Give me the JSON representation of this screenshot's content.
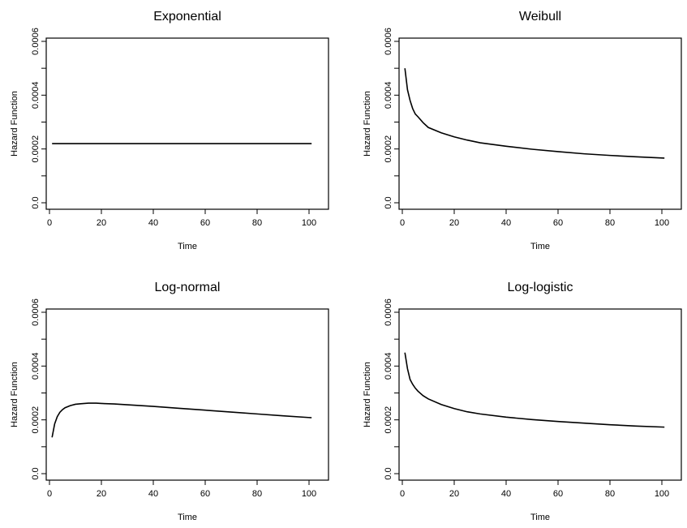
{
  "chart_data": [
    {
      "type": "line",
      "title": "Exponential",
      "xlabel": "Time",
      "ylabel": "Hazard Function",
      "xlim": [
        0,
        100
      ],
      "ylim": [
        0,
        0.0006
      ],
      "xticks": [
        "0",
        "20",
        "40",
        "60",
        "80",
        "100"
      ],
      "yticks": [
        "0.0",
        "0.0002",
        "0.0004",
        "0.0006"
      ],
      "grid": false,
      "series": [
        {
          "x": [
            1,
            10,
            20,
            30,
            40,
            50,
            60,
            70,
            80,
            90,
            101
          ],
          "y": [
            0.00022,
            0.00022,
            0.00022,
            0.00022,
            0.00022,
            0.00022,
            0.00022,
            0.00022,
            0.00022,
            0.00022,
            0.00022
          ]
        }
      ]
    },
    {
      "type": "line",
      "title": "Weibull",
      "xlabel": "Time",
      "ylabel": "Hazard Function",
      "xlim": [
        0,
        100
      ],
      "ylim": [
        0,
        0.0006
      ],
      "xticks": [
        "0",
        "20",
        "40",
        "60",
        "80",
        "100"
      ],
      "yticks": [
        "0.0",
        "0.0002",
        "0.0004",
        "0.0006"
      ],
      "grid": false,
      "series": [
        {
          "x": [
            1,
            2,
            3,
            4,
            5,
            6,
            8,
            10,
            15,
            20,
            25,
            30,
            40,
            50,
            60,
            70,
            80,
            90,
            101
          ],
          "y": [
            0.0005,
            0.00042,
            0.00038,
            0.00035,
            0.00033,
            0.00032,
            0.000298,
            0.00028,
            0.00026,
            0.000245,
            0.000233,
            0.000223,
            0.00021,
            0.000199,
            0.00019,
            0.000182,
            0.000176,
            0.000171,
            0.000166
          ]
        }
      ]
    },
    {
      "type": "line",
      "title": "Log-normal",
      "xlabel": "Time",
      "ylabel": "Hazard Function",
      "xlim": [
        0,
        100
      ],
      "ylim": [
        0,
        0.0006
      ],
      "xticks": [
        "0",
        "20",
        "40",
        "60",
        "80",
        "100"
      ],
      "yticks": [
        "0.0",
        "0.0002",
        "0.0004",
        "0.0006"
      ],
      "grid": false,
      "series": [
        {
          "x": [
            1,
            2,
            3,
            4,
            5,
            6,
            8,
            10,
            12,
            15,
            18,
            20,
            25,
            30,
            40,
            50,
            60,
            70,
            80,
            90,
            101
          ],
          "y": [
            0.000135,
            0.000185,
            0.000212,
            0.000228,
            0.000238,
            0.000245,
            0.000253,
            0.000258,
            0.00026,
            0.000262,
            0.000262,
            0.000261,
            0.000259,
            0.000256,
            0.00025,
            0.000243,
            0.000236,
            0.000229,
            0.000222,
            0.000215,
            0.000208
          ]
        }
      ]
    },
    {
      "type": "line",
      "title": "Log-logistic",
      "xlabel": "Time",
      "ylabel": "Hazard Function",
      "xlim": [
        0,
        100
      ],
      "ylim": [
        0,
        0.0006
      ],
      "xticks": [
        "0",
        "20",
        "40",
        "60",
        "80",
        "100"
      ],
      "yticks": [
        "0.0",
        "0.0002",
        "0.0004",
        "0.0006"
      ],
      "grid": false,
      "series": [
        {
          "x": [
            1,
            2,
            3,
            4,
            5,
            6,
            8,
            10,
            15,
            20,
            25,
            30,
            40,
            50,
            60,
            70,
            80,
            90,
            101
          ],
          "y": [
            0.00045,
            0.00039,
            0.00035,
            0.000332,
            0.000318,
            0.000307,
            0.00029,
            0.000278,
            0.000257,
            0.000242,
            0.00023,
            0.000222,
            0.00021,
            0.000201,
            0.000194,
            0.000188,
            0.000182,
            0.000177,
            0.000173
          ]
        }
      ]
    }
  ]
}
